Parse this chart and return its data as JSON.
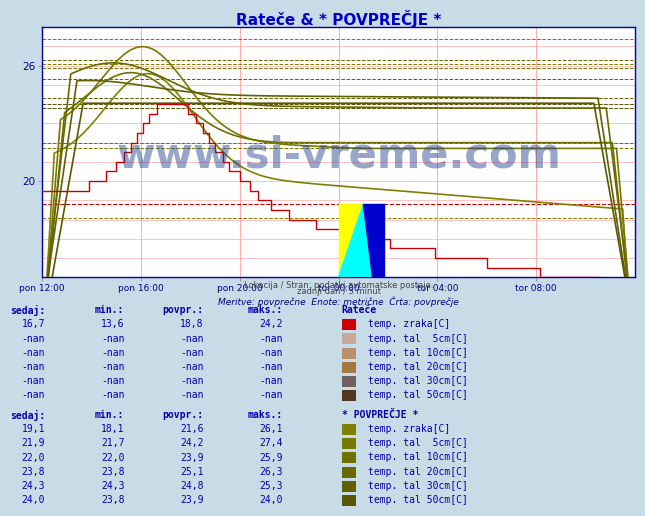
{
  "title": "Rateče & * POVPREČJE *",
  "title_color": "#0000cc",
  "fig_bg": "#c8dce8",
  "plot_bg": "#ffffff",
  "yticks": [
    20,
    26
  ],
  "ylim": [
    15.0,
    28.0
  ],
  "xlim": [
    0,
    288
  ],
  "xtick_positions": [
    0,
    48,
    96,
    144,
    192,
    240
  ],
  "xtick_labels": [
    "pon 12:00",
    "pon 16:00",
    "pon 20:00",
    "tor 00:00",
    "tor 04:00",
    "tor 08:00"
  ],
  "ratece_color": "#cc0000",
  "olive_colors": [
    "#808000",
    "#787800",
    "#707000",
    "#686800",
    "#606000",
    "#585800"
  ],
  "grid_color": "#ffaaaa",
  "subtitle1": "Lokacija / Stran: podatki avtomatske postaje.",
  "subtitle2": "zadnji dan / 5 minut",
  "meritve": "Meritve: povprečne  Enote: metrične  Črta: povprečje",
  "watermark": "www.si-vreme.com",
  "watermark_color": "#1a3a8a",
  "table_color": "#0000aa",
  "ratece_rows": [
    {
      "sedaj": "16,7",
      "min": "13,6",
      "povpr": "18,8",
      "maks": "24,2",
      "label": "temp. zraka[C]",
      "color": "#cc0000"
    },
    {
      "sedaj": "-nan",
      "min": "-nan",
      "povpr": "-nan",
      "maks": "-nan",
      "label": "temp. tal  5cm[C]",
      "color": "#c8a898"
    },
    {
      "sedaj": "-nan",
      "min": "-nan",
      "povpr": "-nan",
      "maks": "-nan",
      "label": "temp. tal 10cm[C]",
      "color": "#b89070"
    },
    {
      "sedaj": "-nan",
      "min": "-nan",
      "povpr": "-nan",
      "maks": "-nan",
      "label": "temp. tal 20cm[C]",
      "color": "#a07840"
    },
    {
      "sedaj": "-nan",
      "min": "-nan",
      "povpr": "-nan",
      "maks": "-nan",
      "label": "temp. tal 30cm[C]",
      "color": "#706060"
    },
    {
      "sedaj": "-nan",
      "min": "-nan",
      "povpr": "-nan",
      "maks": "-nan",
      "label": "temp. tal 50cm[C]",
      "color": "#503820"
    }
  ],
  "povpr_rows": [
    {
      "sedaj": "19,1",
      "min": "18,1",
      "povpr": "21,6",
      "maks": "26,1",
      "label": "temp. zraka[C]",
      "color": "#808000"
    },
    {
      "sedaj": "21,9",
      "min": "21,7",
      "povpr": "24,2",
      "maks": "27,4",
      "label": "temp. tal  5cm[C]",
      "color": "#787800"
    },
    {
      "sedaj": "22,0",
      "min": "22,0",
      "povpr": "23,9",
      "maks": "25,9",
      "label": "temp. tal 10cm[C]",
      "color": "#707000"
    },
    {
      "sedaj": "23,8",
      "min": "23,8",
      "povpr": "25,1",
      "maks": "26,3",
      "label": "temp. tal 20cm[C]",
      "color": "#686800"
    },
    {
      "sedaj": "24,3",
      "min": "24,3",
      "povpr": "24,8",
      "maks": "25,3",
      "label": "temp. tal 30cm[C]",
      "color": "#606000"
    },
    {
      "sedaj": "24,0",
      "min": "23,8",
      "povpr": "23,9",
      "maks": "24,0",
      "label": "temp. tal 50cm[C]",
      "color": "#585800"
    }
  ]
}
